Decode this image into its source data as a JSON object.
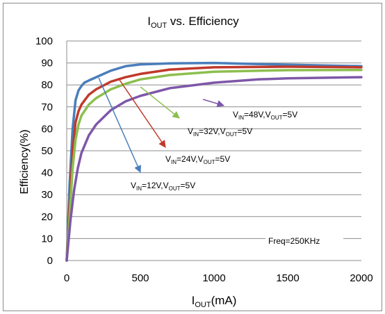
{
  "chart_data": {
    "type": "line",
    "title": {
      "main": "I",
      "sub": "OUT",
      "rest": " vs. Efficiency"
    },
    "xlabel": {
      "main": "I",
      "sub": "OUT",
      "rest": "(mA)"
    },
    "ylabel": "Efficiency(%)",
    "xlim": [
      0,
      2000
    ],
    "ylim": [
      0,
      100
    ],
    "xticks": [
      "0",
      "500",
      "1000",
      "1500",
      "2000"
    ],
    "yticks": [
      "0",
      "10",
      "20",
      "30",
      "40",
      "50",
      "60",
      "70",
      "80",
      "90",
      "100"
    ],
    "grid": "horizontal",
    "series": [
      {
        "color": "#4a7ebb",
        "x": [
          0,
          20,
          40,
          60,
          80,
          100,
          120,
          150,
          200,
          250,
          300,
          400,
          500,
          700,
          1000,
          1300,
          1500,
          2000
        ],
        "y": [
          0,
          35,
          60,
          73,
          77.5,
          79.5,
          81,
          82,
          83.5,
          85,
          86.5,
          88.5,
          89.3,
          89.8,
          90,
          89.5,
          89.2,
          88.5
        ]
      },
      {
        "color": "#c0392b",
        "x": [
          0,
          20,
          40,
          60,
          80,
          100,
          150,
          200,
          300,
          400,
          500,
          700,
          1000,
          1500,
          2000
        ],
        "y": [
          0,
          25,
          50,
          63,
          68,
          71,
          75.5,
          78,
          81.5,
          83.5,
          85,
          87,
          88,
          88.3,
          88
        ]
      },
      {
        "color": "#8cbf4e",
        "x": [
          0,
          20,
          40,
          60,
          80,
          100,
          150,
          200,
          300,
          400,
          500,
          700,
          1000,
          1500,
          2000
        ],
        "y": [
          0,
          20,
          42,
          55,
          62,
          66,
          71,
          74,
          78,
          80.5,
          82.5,
          84.5,
          86,
          86.7,
          86.8
        ]
      },
      {
        "color": "#7e57a8",
        "x": [
          0,
          25,
          50,
          75,
          100,
          150,
          200,
          300,
          400,
          500,
          700,
          1000,
          1300,
          1500,
          2000
        ],
        "y": [
          0,
          18,
          32,
          42,
          49,
          57,
          62,
          68.5,
          72.5,
          75,
          78.5,
          81,
          82.5,
          83,
          83.5
        ]
      }
    ],
    "annotations": [
      {
        "pre": "V",
        "s1": "IN",
        "mid": "=48V,V",
        "s2": "OUT",
        "post": "=5V"
      },
      {
        "pre": "V",
        "s1": "IN",
        "mid": "=32V,V",
        "s2": "OUT",
        "post": "=5V"
      },
      {
        "pre": "V",
        "s1": "IN",
        "mid": "=24V,V",
        "s2": "OUT",
        "post": "=5V"
      },
      {
        "pre": "V",
        "s1": "IN",
        "mid": "=12V,V",
        "s2": "OUT",
        "post": "=5V"
      }
    ],
    "note": "Freq=250KHz"
  }
}
